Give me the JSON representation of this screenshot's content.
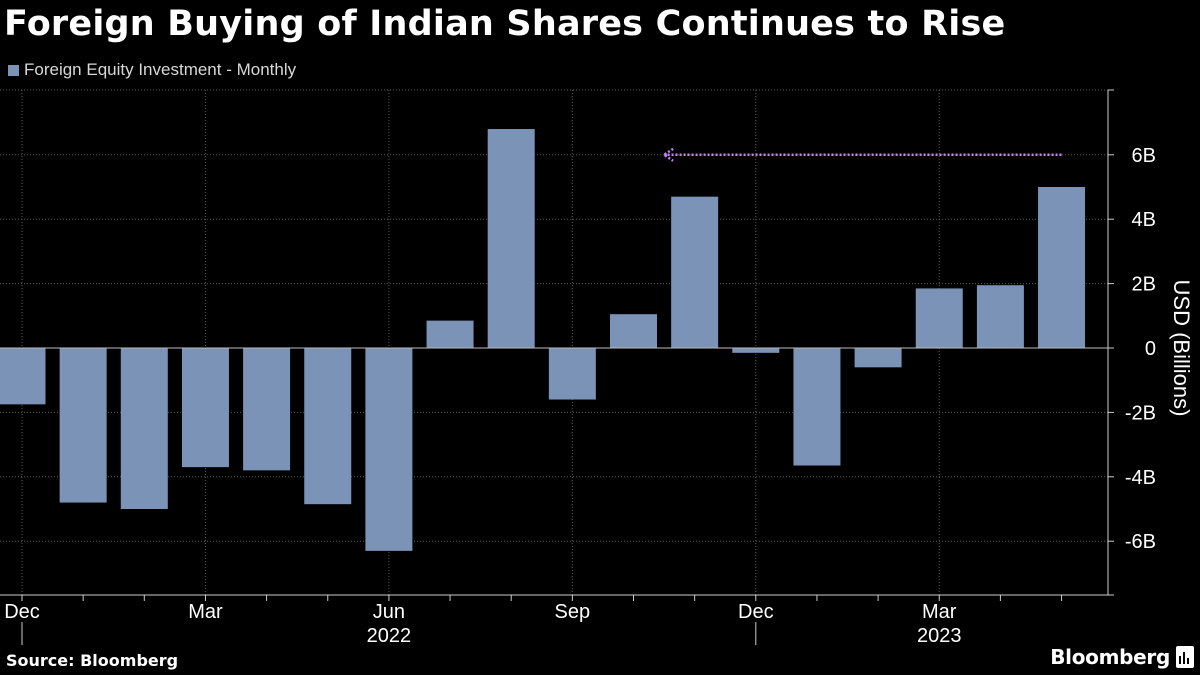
{
  "page": {
    "title": "Foreign Buying of Indian Shares Continues to Rise",
    "source": "Source: Bloomberg",
    "brand": "Bloomberg",
    "brand_icon": "bloomberg-terminal-icon"
  },
  "colors": {
    "background": "#000000",
    "bar": "#7b93b6",
    "arrow": "#c77dff",
    "grid": "#5a5a5a",
    "text": "#ffffff",
    "axis_text": "#d8d8d8"
  },
  "chart_data": {
    "type": "bar",
    "title": "Foreign Buying of Indian Shares Continues to Rise",
    "series": [
      {
        "name": "Foreign Equity Investment - Monthly",
        "values": [
          -1.75,
          -4.8,
          -5.0,
          -3.7,
          -3.8,
          -4.85,
          -6.3,
          0.85,
          6.8,
          -1.6,
          1.05,
          4.7,
          -0.15,
          -3.65,
          -0.6,
          1.85,
          1.95,
          5.0
        ]
      }
    ],
    "categories": [
      "2021-12",
      "2022-01",
      "2022-02",
      "2022-03",
      "2022-04",
      "2022-05",
      "2022-06",
      "2022-07",
      "2022-08",
      "2022-09",
      "2022-10",
      "2022-11",
      "2022-12",
      "2023-01",
      "2023-02",
      "2023-03",
      "2023-04",
      "2023-05"
    ],
    "x_tick_labels": [
      {
        "index": 0,
        "label": "Dec"
      },
      {
        "index": 3,
        "label": "Mar"
      },
      {
        "index": 6,
        "label": "Jun"
      },
      {
        "index": 9,
        "label": "Sep"
      },
      {
        "index": 12,
        "label": "Dec"
      },
      {
        "index": 15,
        "label": "Mar"
      }
    ],
    "x_year_labels": [
      {
        "index": 6,
        "label": "2022"
      },
      {
        "index": 15,
        "label": "2023"
      }
    ],
    "x_year_separators": [
      1,
      13
    ],
    "ylabel": "USD (Billions)",
    "ylim": [
      -7.5,
      8
    ],
    "yticks": [
      6,
      4,
      2,
      0,
      -2,
      -4,
      -6
    ],
    "ytick_labels": [
      "6B",
      "4B",
      "2B",
      "0",
      "-2B",
      "-4B",
      "-6B"
    ],
    "annotation": {
      "type": "arrow",
      "direction": "left",
      "y": 6.0,
      "from_index": 17,
      "to_index": 10.5
    },
    "grid": true,
    "legend_position": "top-left",
    "y_axis_position": "right"
  }
}
